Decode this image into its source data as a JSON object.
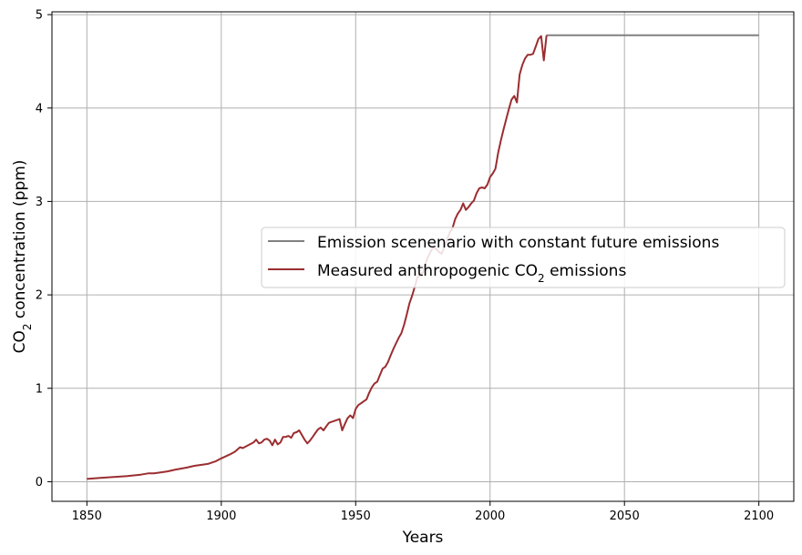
{
  "chart_data": {
    "type": "line",
    "title": "",
    "xlabel": "Years",
    "ylabel": {
      "prefix": "CO",
      "subscript": "2",
      "suffix": " concentration (ppm)"
    },
    "xlim": [
      1837,
      2113
    ],
    "ylim": [
      -0.21,
      5.03
    ],
    "grid": true,
    "legend_position": "center-right",
    "x_ticks": [
      1850,
      1900,
      1950,
      2000,
      2050,
      2100
    ],
    "y_ticks": [
      0,
      1,
      2,
      3,
      4,
      5
    ],
    "series": [
      {
        "name": "Emission scenenario with constant future emissions",
        "color": "#808080",
        "x": [
          2021,
          2100
        ],
        "y": [
          4.78,
          4.78
        ]
      },
      {
        "name": "Measured anthropogenic CO2 emissions",
        "legend_label": {
          "prefix": "Measured anthropogenic CO",
          "subscript": "2",
          "suffix": " emissions"
        },
        "color": "#9b2d30",
        "x": [
          1850,
          1855,
          1860,
          1865,
          1870,
          1873,
          1875,
          1880,
          1883,
          1887,
          1890,
          1895,
          1898,
          1900,
          1903,
          1905,
          1907,
          1908,
          1910,
          1912,
          1913,
          1914,
          1915,
          1916,
          1917,
          1918,
          1919,
          1920,
          1921,
          1922,
          1923,
          1924,
          1925,
          1926,
          1927,
          1928,
          1929,
          1930,
          1931,
          1932,
          1933,
          1934,
          1935,
          1936,
          1937,
          1938,
          1939,
          1940,
          1941,
          1942,
          1943,
          1944,
          1945,
          1946,
          1947,
          1948,
          1949,
          1950,
          1951,
          1952,
          1953,
          1954,
          1955,
          1956,
          1957,
          1958,
          1959,
          1960,
          1961,
          1962,
          1963,
          1964,
          1965,
          1966,
          1967,
          1968,
          1969,
          1970,
          1971,
          1972,
          1973,
          1974,
          1975,
          1976,
          1977,
          1978,
          1979,
          1980,
          1981,
          1982,
          1983,
          1984,
          1985,
          1986,
          1987,
          1988,
          1989,
          1990,
          1991,
          1992,
          1993,
          1994,
          1995,
          1996,
          1997,
          1998,
          1999,
          2000,
          2001,
          2002,
          2003,
          2004,
          2005,
          2006,
          2007,
          2008,
          2009,
          2010,
          2011,
          2012,
          2013,
          2014,
          2015,
          2016,
          2017,
          2018,
          2019,
          2020,
          2021
        ],
        "y": [
          0.03,
          0.04,
          0.05,
          0.06,
          0.075,
          0.09,
          0.09,
          0.11,
          0.13,
          0.15,
          0.17,
          0.19,
          0.22,
          0.25,
          0.29,
          0.32,
          0.37,
          0.36,
          0.39,
          0.42,
          0.45,
          0.41,
          0.42,
          0.45,
          0.46,
          0.44,
          0.39,
          0.45,
          0.4,
          0.42,
          0.48,
          0.48,
          0.49,
          0.47,
          0.52,
          0.53,
          0.55,
          0.5,
          0.45,
          0.41,
          0.44,
          0.48,
          0.52,
          0.56,
          0.58,
          0.55,
          0.59,
          0.63,
          0.64,
          0.65,
          0.66,
          0.67,
          0.55,
          0.62,
          0.68,
          0.71,
          0.68,
          0.78,
          0.82,
          0.84,
          0.86,
          0.88,
          0.95,
          1.01,
          1.05,
          1.07,
          1.14,
          1.21,
          1.23,
          1.28,
          1.35,
          1.42,
          1.48,
          1.54,
          1.59,
          1.68,
          1.79,
          1.91,
          1.99,
          2.09,
          2.19,
          2.22,
          2.24,
          2.34,
          2.41,
          2.47,
          2.51,
          2.49,
          2.46,
          2.44,
          2.51,
          2.59,
          2.67,
          2.71,
          2.81,
          2.87,
          2.91,
          2.98,
          2.91,
          2.94,
          2.98,
          3.01,
          3.09,
          3.14,
          3.15,
          3.14,
          3.18,
          3.26,
          3.3,
          3.35,
          3.52,
          3.65,
          3.77,
          3.88,
          3.99,
          4.09,
          4.13,
          4.06,
          4.36,
          4.46,
          4.53,
          4.57,
          4.57,
          4.58,
          4.66,
          4.74,
          4.77,
          4.51,
          4.78
        ]
      }
    ]
  }
}
